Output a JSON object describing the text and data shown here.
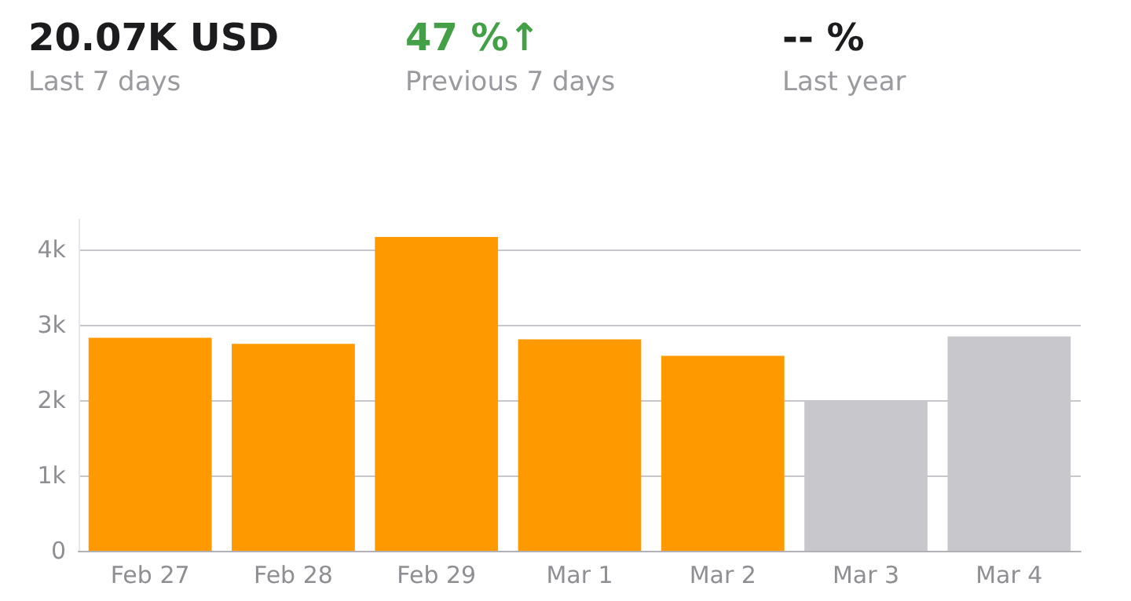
{
  "chart_data": {
    "type": "bar",
    "annotations": [
      "20.07K USD",
      "Last 7 days",
      "47 %↑",
      "Previous 7 days",
      "-- %",
      "Last year"
    ],
    "categories": [
      "Feb 27",
      "Feb 28",
      "Feb 29",
      "Mar 1",
      "Mar 2",
      "Mar 3",
      "Mar 4"
    ],
    "values": [
      2830,
      2750,
      4170,
      2810,
      2590,
      1980,
      2850
    ],
    "colors": [
      "#ff9900",
      "#ff9900",
      "#ff9900",
      "#ff9900",
      "#ff9900",
      "#c7c7cc",
      "#c7c7cc"
    ],
    "ylim": [
      0,
      4400
    ],
    "yticks": [
      {
        "value": 0,
        "label": "0"
      },
      {
        "value": 1000,
        "label": "1k"
      },
      {
        "value": 2000,
        "label": "2k"
      },
      {
        "value": 3000,
        "label": "3k"
      },
      {
        "value": 4000,
        "label": "4k"
      }
    ],
    "grid": "y"
  }
}
